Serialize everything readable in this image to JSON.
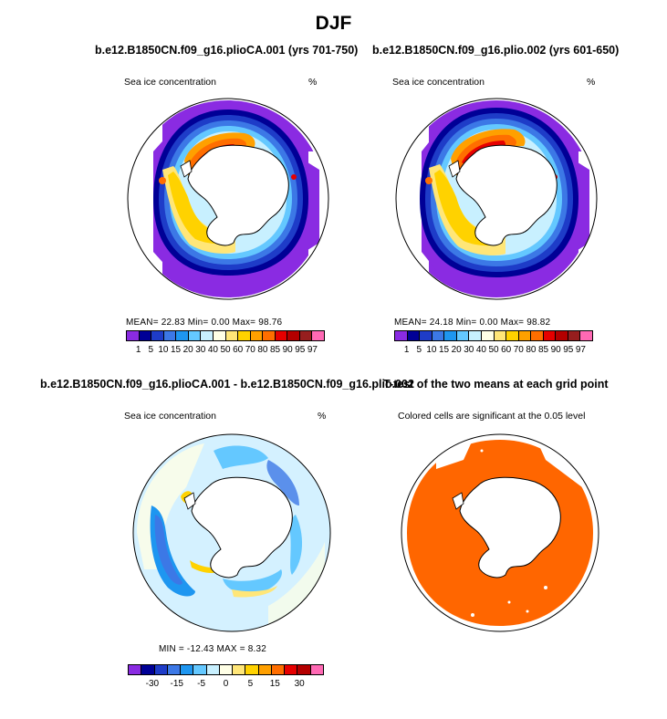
{
  "title": "DJF",
  "panels": [
    {
      "title": "b.e12.B1850CN.f09_g16.plioCA.001 (yrs 701-750)",
      "left_label": "Sea ice concentration",
      "right_label": "%",
      "stats": "MEAN=   22.83   Min=    0.00   Max=   98.76"
    },
    {
      "title": "b.e12.B1850CN.f09_g16.plio.002 (yrs 601-650)",
      "left_label": "Sea ice concentration",
      "right_label": "%",
      "stats": "MEAN=   24.18   Min=    0.00   Max=   98.82"
    },
    {
      "title": "b.e12.B1850CN.f09_g16.plioCA.001 - b.e12.B1850CN.f09_g16.plio.002",
      "left_label": "Sea ice concentration",
      "right_label": "%",
      "stats": "MIN = -12.43  MAX =    8.32"
    },
    {
      "title": "T-test of the two means at each grid point",
      "subtitle": "Colored cells are significant at the 0.05 level"
    }
  ],
  "colorbar_top": {
    "colors": [
      "#8a2be2",
      "#000096",
      "#1e3cc8",
      "#3c78e6",
      "#1e96f0",
      "#64c8ff",
      "#c8f0ff",
      "#ffffe6",
      "#ffe678",
      "#ffd200",
      "#ffa000",
      "#ff6e00",
      "#e60000",
      "#b40000",
      "#961e1e",
      "#ff69b4"
    ],
    "labels": [
      "1",
      "5",
      "10",
      "15",
      "20",
      "30",
      "40",
      "50",
      "60",
      "70",
      "80",
      "85",
      "90",
      "95",
      "97"
    ]
  },
  "colorbar_bottom": {
    "colors": [
      "#8a2be2",
      "#000096",
      "#1e3cc8",
      "#3c78e6",
      "#1e96f0",
      "#64c8ff",
      "#c8f0ff",
      "#ffffe6",
      "#ffe678",
      "#ffd200",
      "#ffa000",
      "#ff6e00",
      "#e60000",
      "#b40000",
      "#ff69b4"
    ],
    "labels": [
      "-30",
      "-15",
      "-5",
      "0",
      "5",
      "15",
      "30"
    ]
  },
  "colors": {
    "ttest_fill": "#ff6600",
    "land": "#ffffff",
    "ocean_diff": "#e0f2ff"
  }
}
